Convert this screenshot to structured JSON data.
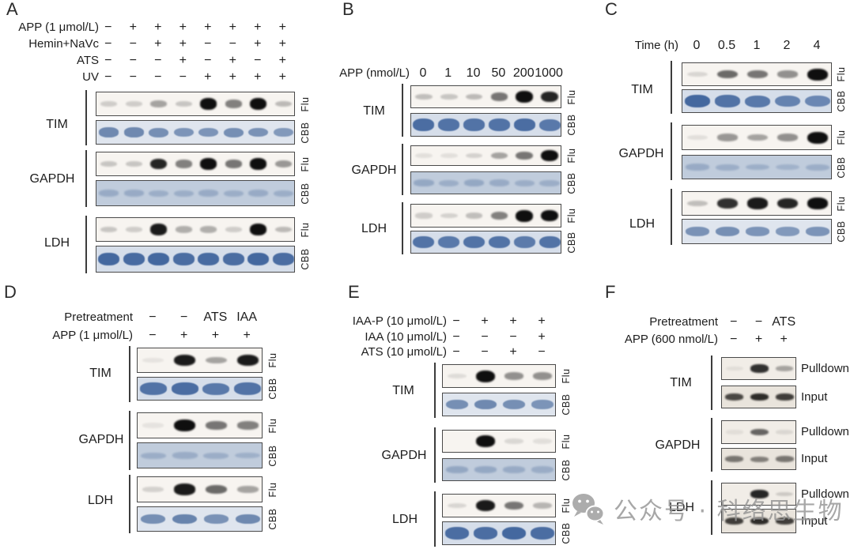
{
  "watermark": {
    "text": "公众号 · 科络思生物",
    "color": "#949494",
    "icon": "wechat-icon"
  },
  "stain_colors": {
    "flu_band": "#0f0f0f",
    "cbb_band": "#44689f",
    "cbb_background": "#d6deea",
    "input_background": "#e9e4dc"
  },
  "panels": [
    {
      "id": "A",
      "lanes": 8,
      "conditions": [
        {
          "label": "APP (1 μmol/L)",
          "values": [
            "−",
            "+",
            "+",
            "+",
            "+",
            "+",
            "+",
            "+"
          ]
        },
        {
          "label": "Hemin+NaVc",
          "values": [
            "−",
            "−",
            "+",
            "+",
            "−",
            "−",
            "+",
            "+"
          ]
        },
        {
          "label": "ATS",
          "values": [
            "−",
            "−",
            "−",
            "+",
            "−",
            "+",
            "−",
            "+"
          ]
        },
        {
          "label": "UV",
          "values": [
            "−",
            "−",
            "−",
            "−",
            "+",
            "+",
            "+",
            "+"
          ]
        }
      ],
      "groups": [
        {
          "name": "TIM",
          "strips": [
            {
              "side": "Flu",
              "kind": "flu",
              "bands": [
                0.12,
                0.12,
                0.3,
                0.15,
                0.95,
                0.45,
                1.0,
                0.2
              ]
            },
            {
              "side": "CBB",
              "kind": "cbb",
              "bands": [
                0.8,
                0.8,
                0.75,
                0.7,
                0.7,
                0.75,
                0.72,
                0.65
              ]
            }
          ]
        },
        {
          "name": "GAPDH",
          "strips": [
            {
              "side": "Flu",
              "kind": "flu",
              "bands": [
                0.15,
                0.15,
                0.85,
                0.45,
                0.95,
                0.5,
                0.95,
                0.35
              ]
            },
            {
              "side": "CBB",
              "kind": "cbb_wash",
              "bands": [
                0.55,
                0.55,
                0.5,
                0.5,
                0.55,
                0.5,
                0.55,
                0.5
              ]
            }
          ]
        },
        {
          "name": "LDH",
          "strips": [
            {
              "side": "Flu",
              "kind": "flu",
              "bands": [
                0.15,
                0.12,
                0.9,
                0.25,
                0.25,
                0.12,
                0.95,
                0.2
              ]
            },
            {
              "side": "CBB",
              "kind": "cbb_strong",
              "bands": [
                0.95,
                0.92,
                0.95,
                0.9,
                0.92,
                0.9,
                0.95,
                0.9
              ]
            }
          ]
        }
      ]
    },
    {
      "id": "B",
      "lanes": 6,
      "conditions": [
        {
          "label": "APP (nmol/L)",
          "values": [
            "0",
            "1",
            "10",
            "50",
            "200",
            "1000"
          ]
        }
      ],
      "groups": [
        {
          "name": "TIM",
          "strips": [
            {
              "side": "Flu",
              "kind": "flu",
              "bands": [
                0.18,
                0.15,
                0.2,
                0.5,
                1.0,
                0.85
              ]
            },
            {
              "side": "CBB",
              "kind": "cbb_strong",
              "bands": [
                0.9,
                0.85,
                0.85,
                0.85,
                0.9,
                0.8
              ]
            }
          ]
        },
        {
          "name": "GAPDH",
          "strips": [
            {
              "side": "Flu",
              "kind": "flu",
              "bands": [
                0.04,
                0.04,
                0.1,
                0.3,
                0.5,
                0.95
              ]
            },
            {
              "side": "CBB",
              "kind": "cbb_wash",
              "bands": [
                0.6,
                0.5,
                0.6,
                0.55,
                0.5,
                0.5
              ]
            }
          ]
        },
        {
          "name": "LDH",
          "strips": [
            {
              "side": "Flu",
              "kind": "flu",
              "bands": [
                0.12,
                0.1,
                0.18,
                0.45,
                1.0,
                0.95
              ]
            },
            {
              "side": "CBB",
              "kind": "cbb_strong",
              "bands": [
                0.85,
                0.8,
                0.85,
                0.85,
                0.78,
                0.85
              ]
            }
          ]
        }
      ]
    },
    {
      "id": "C",
      "lanes": 5,
      "conditions": [
        {
          "label": "Time (h)",
          "values": [
            "0",
            "0.5",
            "1",
            "2",
            "4"
          ]
        }
      ],
      "groups": [
        {
          "name": "TIM",
          "strips": [
            {
              "side": "Flu",
              "kind": "flu",
              "bands": [
                0.08,
                0.55,
                0.5,
                0.38,
                1.0
              ]
            },
            {
              "side": "CBB",
              "kind": "cbb_strong",
              "bands": [
                0.95,
                0.85,
                0.8,
                0.72,
                0.68
              ]
            }
          ]
        },
        {
          "name": "GAPDH",
          "strips": [
            {
              "side": "Flu",
              "kind": "flu",
              "bands": [
                0.04,
                0.35,
                0.3,
                0.38,
                1.0
              ]
            },
            {
              "side": "CBB",
              "kind": "cbb_wash",
              "bands": [
                0.55,
                0.5,
                0.48,
                0.42,
                0.5
              ]
            }
          ]
        },
        {
          "name": "LDH",
          "strips": [
            {
              "side": "Flu",
              "kind": "flu",
              "bands": [
                0.18,
                0.8,
                0.9,
                0.85,
                0.95
              ]
            },
            {
              "side": "CBB",
              "kind": "cbb",
              "bands": [
                0.72,
                0.75,
                0.7,
                0.65,
                0.7
              ]
            }
          ]
        }
      ]
    },
    {
      "id": "D",
      "lanes": 4,
      "conditions": [
        {
          "label": "Pretreatment",
          "values": [
            "−",
            "−",
            "ATS",
            "IAA"
          ]
        },
        {
          "label": "APP (1 μmol/L)",
          "values": [
            "−",
            "+",
            "+",
            "+"
          ]
        }
      ],
      "groups": [
        {
          "name": "TIM",
          "strips": [
            {
              "side": "Flu",
              "kind": "flu",
              "bands": [
                0.02,
                0.9,
                0.3,
                0.9
              ]
            },
            {
              "side": "CBB",
              "kind": "cbb_strong",
              "bands": [
                0.85,
                0.9,
                0.8,
                0.85
              ]
            }
          ]
        },
        {
          "name": "GAPDH",
          "strips": [
            {
              "side": "Flu",
              "kind": "flu",
              "bands": [
                0.02,
                1.0,
                0.5,
                0.45
              ]
            },
            {
              "side": "CBB",
              "kind": "cbb_wash",
              "bands": [
                0.5,
                0.52,
                0.5,
                0.45
              ]
            }
          ]
        },
        {
          "name": "LDH",
          "strips": [
            {
              "side": "Flu",
              "kind": "flu",
              "bands": [
                0.1,
                0.9,
                0.55,
                0.3
              ]
            },
            {
              "side": "CBB",
              "kind": "cbb",
              "bands": [
                0.75,
                0.85,
                0.72,
                0.8
              ]
            }
          ]
        }
      ]
    },
    {
      "id": "E",
      "lanes": 4,
      "conditions": [
        {
          "label": "IAA-P (10 μmol/L)",
          "values": [
            "−",
            "+",
            "+",
            "+"
          ]
        },
        {
          "label": "IAA (10 μmol/L)",
          "values": [
            "−",
            "−",
            "−",
            "+"
          ]
        },
        {
          "label": "ATS (10 μmol/L)",
          "values": [
            "−",
            "−",
            "+",
            "−"
          ]
        }
      ],
      "groups": [
        {
          "name": "TIM",
          "strips": [
            {
              "side": "Flu",
              "kind": "flu",
              "bands": [
                0.05,
                1.0,
                0.38,
                0.38
              ]
            },
            {
              "side": "CBB",
              "kind": "cbb",
              "bands": [
                0.75,
                0.8,
                0.75,
                0.7
              ]
            }
          ]
        },
        {
          "name": "GAPDH",
          "strips": [
            {
              "side": "Flu",
              "kind": "flu",
              "bands": [
                0.0,
                0.95,
                0.07,
                0.04
              ]
            },
            {
              "side": "CBB",
              "kind": "cbb_wash",
              "bands": [
                0.62,
                0.6,
                0.55,
                0.52
              ]
            }
          ]
        },
        {
          "name": "LDH",
          "strips": [
            {
              "side": "Flu",
              "kind": "flu",
              "bands": [
                0.08,
                0.9,
                0.5,
                0.22
              ]
            },
            {
              "side": "CBB",
              "kind": "cbb_strong",
              "bands": [
                0.9,
                0.9,
                0.95,
                0.9
              ]
            }
          ]
        }
      ]
    },
    {
      "id": "F",
      "lanes": 3,
      "conditions": [
        {
          "label": "Pretreatment",
          "values": [
            "−",
            "−",
            "ATS"
          ]
        },
        {
          "label": "APP (600 nmol/L)",
          "values": [
            "−",
            "+",
            "+"
          ]
        }
      ],
      "groups": [
        {
          "name": "TIM",
          "strips": [
            {
              "side": "Pulldown",
              "kind": "pulldown",
              "bands": [
                0.02,
                0.85,
                0.3
              ]
            },
            {
              "side": "Input",
              "kind": "input",
              "bands": [
                0.8,
                0.95,
                0.85
              ]
            }
          ]
        },
        {
          "name": "GAPDH",
          "strips": [
            {
              "side": "Pulldown",
              "kind": "pulldown",
              "bands": [
                0.02,
                0.6,
                0.05
              ]
            },
            {
              "side": "Input",
              "kind": "input",
              "bands": [
                0.55,
                0.5,
                0.55
              ]
            }
          ]
        },
        {
          "name": "LDH",
          "strips": [
            {
              "side": "Pulldown",
              "kind": "pulldown",
              "bands": [
                0.0,
                0.9,
                0.12
              ]
            },
            {
              "side": "Input",
              "kind": "input",
              "bands": [
                0.85,
                0.95,
                0.85
              ]
            }
          ]
        }
      ]
    }
  ]
}
